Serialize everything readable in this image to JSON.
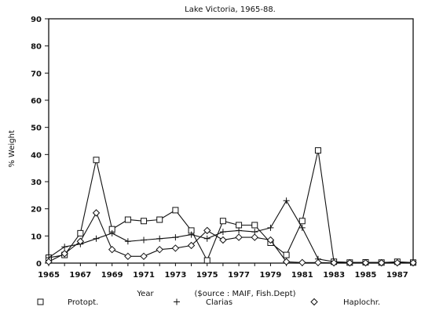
{
  "chart_data": {
    "type": "line",
    "title": "Lake Victoria, 1965-88.",
    "xlabel": "Year",
    "ylabel": "% Weight",
    "source_note": "($ource : MAIF, Fish.Dept)",
    "xlim": [
      1965,
      1988
    ],
    "ylim": [
      0,
      90
    ],
    "xticks": [
      1965,
      1967,
      1969,
      1971,
      1973,
      1975,
      1977,
      1979,
      1981,
      1983,
      1985,
      1987
    ],
    "yticks": [
      0,
      10,
      20,
      30,
      40,
      50,
      60,
      70,
      80,
      90
    ],
    "grid": false,
    "legend": "bottom",
    "x": [
      1965,
      1966,
      1967,
      1968,
      1969,
      1970,
      1971,
      1972,
      1973,
      1974,
      1975,
      1976,
      1977,
      1978,
      1979,
      1980,
      1981,
      1982,
      1983,
      1984,
      1985,
      1986,
      1987,
      1988
    ],
    "series": [
      {
        "name": "Protopt.",
        "marker": "square",
        "color": "#111111",
        "values": [
          2,
          3,
          11,
          38,
          12.5,
          16,
          15.5,
          16,
          19.5,
          12,
          1,
          15.5,
          14,
          14,
          7.5,
          3,
          15.5,
          41.5,
          0.5,
          0.2,
          0.3,
          0.2,
          0.5,
          0.2
        ]
      },
      {
        "name": "Clarias",
        "marker": "plus",
        "color": "#111111",
        "values": [
          2,
          6,
          7,
          9,
          11,
          8,
          8.5,
          9,
          9.5,
          10.5,
          9,
          11.5,
          12,
          11.5,
          13,
          23,
          13,
          1.5,
          0.5,
          0.3,
          0.3,
          0.3,
          0.3,
          0.2
        ]
      },
      {
        "name": "Haplochr.",
        "marker": "diamond",
        "color": "#111111",
        "values": [
          0.5,
          3.5,
          8,
          18.5,
          5,
          2.5,
          2.5,
          5,
          5.5,
          6.5,
          12,
          8.5,
          9.5,
          9.5,
          8.5,
          0.5,
          0.2,
          0.2,
          0.1,
          0.1,
          0.1,
          0.1,
          0.1,
          0.1
        ]
      }
    ]
  }
}
